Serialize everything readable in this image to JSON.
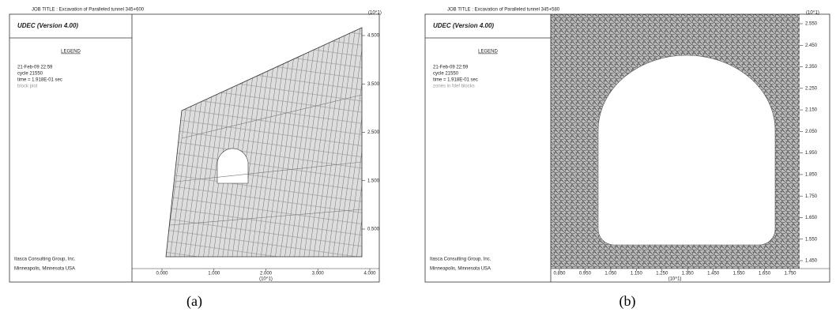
{
  "panels": [
    {
      "job_title": "JOB TITLE : Excavation of Paralleled tunnel 345+600",
      "program": "UDEC (Version 4.00)",
      "legend": "LEGEND",
      "date": "21-Feb-09 22:59",
      "cycle": "cycle 21550",
      "time": "time = 1.918E-01 sec",
      "plot_item": "block plot",
      "company": "Itasca Consulting Group, Inc.",
      "location": "Minneapolis, Minnesota USA",
      "y_unit": "(10^1)",
      "x_unit": "(10^1)",
      "xticks": [
        "0.000",
        "1.000",
        "2.000",
        "3.000",
        "4.000"
      ],
      "yticks": [
        "4.500",
        "3.500",
        "2.500",
        "1.500",
        "0.500"
      ],
      "caption": "(a)"
    },
    {
      "job_title": "JOB TITLE : Excavation of Paralleled tunnel 345+580",
      "program": "UDEC (Version 4.00)",
      "legend": "LEGEND",
      "date": "21-Feb-09 22:59",
      "cycle": "cycle 21550",
      "time": "time = 1.918E-01 sec",
      "plot_item": "zones in fdef blocks",
      "company": "Itasca Consulting Group, Inc.",
      "location": "Minneapolis, Minnesota USA",
      "y_unit": "(10^1)",
      "x_unit": "(10^1)",
      "xticks": [
        "0.850",
        "0.950",
        "1.050",
        "1.150",
        "1.250",
        "1.350",
        "1.450",
        "1.550",
        "1.650",
        "1.750"
      ],
      "yticks": [
        "2.550",
        "2.450",
        "2.350",
        "2.250",
        "2.150",
        "2.050",
        "1.950",
        "1.850",
        "1.750",
        "1.650",
        "1.550",
        "1.450"
      ],
      "caption": "(b)"
    }
  ]
}
